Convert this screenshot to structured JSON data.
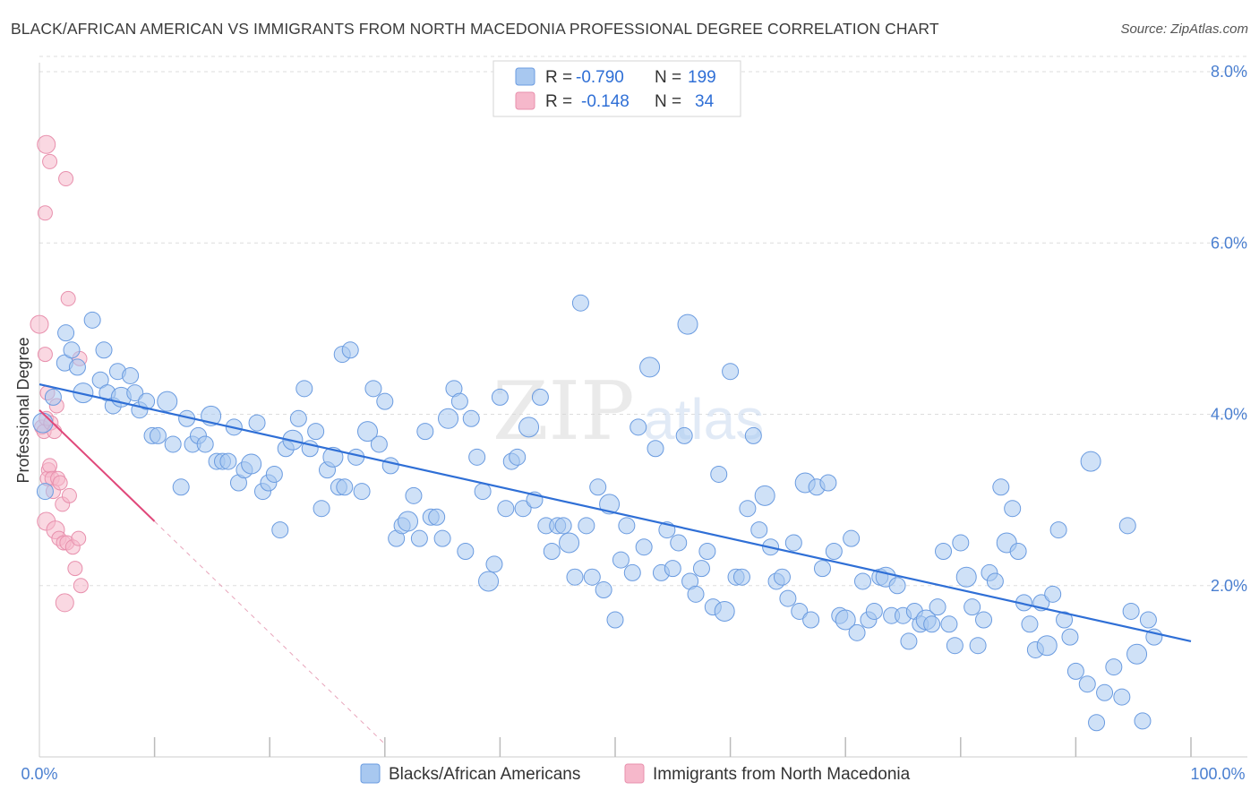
{
  "header": {
    "title": "BLACK/AFRICAN AMERICAN VS IMMIGRANTS FROM NORTH MACEDONIA PROFESSIONAL DEGREE CORRELATION CHART",
    "source": "Source: ZipAtlas.com"
  },
  "watermark": {
    "zip": "ZIP",
    "atlas": "atlas"
  },
  "legend_top": {
    "rows": [
      {
        "r_label": "R =",
        "r_value": "-0.790",
        "n_label": "N =",
        "n_value": "199",
        "color": "#a8c8f0"
      },
      {
        "r_label": "R =",
        "r_value": "-0.148",
        "n_label": "N =",
        "n_value": "34",
        "color": "#f6b8cb"
      }
    ]
  },
  "colors": {
    "blue_fill": "#a8c8f0",
    "blue_stroke": "#6a9be0",
    "blue_line": "#2f6fd6",
    "pink_fill": "#f6b8cb",
    "pink_stroke": "#e890ad",
    "pink_line": "#e0487a",
    "grid": "#dddddd",
    "tick_text": "#4a7fd0"
  },
  "chart_data": {
    "type": "scatter",
    "title": "BLACK/AFRICAN AMERICAN VS IMMIGRANTS FROM NORTH MACEDONIA PROFESSIONAL DEGREE CORRELATION CHART",
    "xlabel": "",
    "ylabel": "Professional Degree",
    "xlim": [
      0,
      100
    ],
    "ylim": [
      0,
      8.0
    ],
    "x_tick_labels": [
      "0.0%",
      "100.0%"
    ],
    "y_ticks": [
      2.0,
      4.0,
      6.0,
      8.0
    ],
    "y_tick_labels": [
      "2.0%",
      "4.0%",
      "6.0%",
      "8.0%"
    ],
    "grid": "horizontal dashed",
    "legend_placement": "bottom-center",
    "series": [
      {
        "name": "Blacks/African Americans",
        "trend": {
          "x": [
            0,
            100
          ],
          "y": [
            4.35,
            1.35
          ]
        },
        "points": [
          [
            0.3,
            3.9
          ],
          [
            0.5,
            3.1
          ],
          [
            1.2,
            4.2
          ],
          [
            2.2,
            4.6
          ],
          [
            2.3,
            4.95
          ],
          [
            2.8,
            4.75
          ],
          [
            3.3,
            4.55
          ],
          [
            3.8,
            4.25
          ],
          [
            4.6,
            5.1
          ],
          [
            5.3,
            4.4
          ],
          [
            5.6,
            4.75
          ],
          [
            5.9,
            4.25
          ],
          [
            6.4,
            4.1
          ],
          [
            6.8,
            4.5
          ],
          [
            7.1,
            4.2
          ],
          [
            7.9,
            4.45
          ],
          [
            8.3,
            4.25
          ],
          [
            8.7,
            4.05
          ],
          [
            9.3,
            4.15
          ],
          [
            9.8,
            3.75
          ],
          [
            10.3,
            3.75
          ],
          [
            11.1,
            4.15
          ],
          [
            11.6,
            3.65
          ],
          [
            12.3,
            3.15
          ],
          [
            12.8,
            3.95
          ],
          [
            13.3,
            3.65
          ],
          [
            13.8,
            3.75
          ],
          [
            14.4,
            3.65
          ],
          [
            14.9,
            3.98
          ],
          [
            15.4,
            3.45
          ],
          [
            15.9,
            3.45
          ],
          [
            16.4,
            3.45
          ],
          [
            16.9,
            3.85
          ],
          [
            17.3,
            3.2
          ],
          [
            17.8,
            3.35
          ],
          [
            18.4,
            3.42
          ],
          [
            18.9,
            3.9
          ],
          [
            19.4,
            3.1
          ],
          [
            19.9,
            3.2
          ],
          [
            20.4,
            3.3
          ],
          [
            20.9,
            2.65
          ],
          [
            21.4,
            3.6
          ],
          [
            22.0,
            3.7
          ],
          [
            22.5,
            3.95
          ],
          [
            23.0,
            4.3
          ],
          [
            23.5,
            3.6
          ],
          [
            24.0,
            3.8
          ],
          [
            24.5,
            2.9
          ],
          [
            25.0,
            3.35
          ],
          [
            25.5,
            3.5
          ],
          [
            26.0,
            3.15
          ],
          [
            26.3,
            4.7
          ],
          [
            26.5,
            3.15
          ],
          [
            27.0,
            4.75
          ],
          [
            27.5,
            3.5
          ],
          [
            28.0,
            3.1
          ],
          [
            28.5,
            3.8
          ],
          [
            29.0,
            4.3
          ],
          [
            29.5,
            3.65
          ],
          [
            30.0,
            4.15
          ],
          [
            30.5,
            3.4
          ],
          [
            31.0,
            2.55
          ],
          [
            31.5,
            2.7
          ],
          [
            32.0,
            2.75
          ],
          [
            32.5,
            3.05
          ],
          [
            33.0,
            2.55
          ],
          [
            33.5,
            3.8
          ],
          [
            34.0,
            2.8
          ],
          [
            34.5,
            2.8
          ],
          [
            35.0,
            2.55
          ],
          [
            35.5,
            3.95
          ],
          [
            36.0,
            4.3
          ],
          [
            36.5,
            4.15
          ],
          [
            37.0,
            2.4
          ],
          [
            37.5,
            3.95
          ],
          [
            38.0,
            3.5
          ],
          [
            38.5,
            3.1
          ],
          [
            39.0,
            2.05
          ],
          [
            39.5,
            2.25
          ],
          [
            40.0,
            4.2
          ],
          [
            40.5,
            2.9
          ],
          [
            41.0,
            3.45
          ],
          [
            41.5,
            3.5
          ],
          [
            42.0,
            2.9
          ],
          [
            42.5,
            3.85
          ],
          [
            43.0,
            3.0
          ],
          [
            43.5,
            4.2
          ],
          [
            44.0,
            2.7
          ],
          [
            44.5,
            2.4
          ],
          [
            45.0,
            2.7
          ],
          [
            45.5,
            2.7
          ],
          [
            46.0,
            2.5
          ],
          [
            46.5,
            2.1
          ],
          [
            47.0,
            5.3
          ],
          [
            47.5,
            2.7
          ],
          [
            48.0,
            2.1
          ],
          [
            48.5,
            3.15
          ],
          [
            49.0,
            1.95
          ],
          [
            49.5,
            2.95
          ],
          [
            50.0,
            1.6
          ],
          [
            50.5,
            2.3
          ],
          [
            51.0,
            2.7
          ],
          [
            51.5,
            2.15
          ],
          [
            52.0,
            3.85
          ],
          [
            52.5,
            2.45
          ],
          [
            53.0,
            4.55
          ],
          [
            53.5,
            3.6
          ],
          [
            54.0,
            2.15
          ],
          [
            54.5,
            2.65
          ],
          [
            55.0,
            2.2
          ],
          [
            55.5,
            2.5
          ],
          [
            56.0,
            3.75
          ],
          [
            56.3,
            5.05
          ],
          [
            56.5,
            2.05
          ],
          [
            57.0,
            1.9
          ],
          [
            57.5,
            2.2
          ],
          [
            58.0,
            2.4
          ],
          [
            58.5,
            1.75
          ],
          [
            59.0,
            3.3
          ],
          [
            59.5,
            1.7
          ],
          [
            60.0,
            4.5
          ],
          [
            60.5,
            2.1
          ],
          [
            61.0,
            2.1
          ],
          [
            61.5,
            2.9
          ],
          [
            62.0,
            3.75
          ],
          [
            62.5,
            2.65
          ],
          [
            63.0,
            3.05
          ],
          [
            63.5,
            2.45
          ],
          [
            64.0,
            2.05
          ],
          [
            64.5,
            2.1
          ],
          [
            65.0,
            1.85
          ],
          [
            65.5,
            2.5
          ],
          [
            66.0,
            1.7
          ],
          [
            66.5,
            3.2
          ],
          [
            67.0,
            1.6
          ],
          [
            67.5,
            3.15
          ],
          [
            68.0,
            2.2
          ],
          [
            68.5,
            3.2
          ],
          [
            69.0,
            2.4
          ],
          [
            69.5,
            1.65
          ],
          [
            70.0,
            1.6
          ],
          [
            70.5,
            2.55
          ],
          [
            71.0,
            1.45
          ],
          [
            71.5,
            2.05
          ],
          [
            72.0,
            1.6
          ],
          [
            72.5,
            1.7
          ],
          [
            73.0,
            2.1
          ],
          [
            73.5,
            2.1
          ],
          [
            74.0,
            1.65
          ],
          [
            74.5,
            2.0
          ],
          [
            75.0,
            1.65
          ],
          [
            75.5,
            1.35
          ],
          [
            76.0,
            1.7
          ],
          [
            76.5,
            1.55
          ],
          [
            77.0,
            1.6
          ],
          [
            77.5,
            1.55
          ],
          [
            78.0,
            1.75
          ],
          [
            78.5,
            2.4
          ],
          [
            79.0,
            1.55
          ],
          [
            79.5,
            1.3
          ],
          [
            80.0,
            2.5
          ],
          [
            80.5,
            2.1
          ],
          [
            81.0,
            1.75
          ],
          [
            81.5,
            1.3
          ],
          [
            82.0,
            1.6
          ],
          [
            82.5,
            2.15
          ],
          [
            83.0,
            2.05
          ],
          [
            83.5,
            3.15
          ],
          [
            84.0,
            2.5
          ],
          [
            84.5,
            2.9
          ],
          [
            85.0,
            2.4
          ],
          [
            85.5,
            1.8
          ],
          [
            86.0,
            1.55
          ],
          [
            86.5,
            1.25
          ],
          [
            87.0,
            1.8
          ],
          [
            87.5,
            1.3
          ],
          [
            88.0,
            1.9
          ],
          [
            88.5,
            2.65
          ],
          [
            89.0,
            1.6
          ],
          [
            89.5,
            1.4
          ],
          [
            90.0,
            1.0
          ],
          [
            91.0,
            0.85
          ],
          [
            91.3,
            3.45
          ],
          [
            91.8,
            0.4
          ],
          [
            92.5,
            0.75
          ],
          [
            93.3,
            1.05
          ],
          [
            94.0,
            0.7
          ],
          [
            94.5,
            2.7
          ],
          [
            94.8,
            1.7
          ],
          [
            95.3,
            1.2
          ],
          [
            95.8,
            0.42
          ],
          [
            96.3,
            1.6
          ],
          [
            96.8,
            1.4
          ]
        ]
      },
      {
        "name": "Immigrants from North Macedonia",
        "trend": {
          "x": [
            0,
            10
          ],
          "y": [
            4.05,
            2.75
          ]
        },
        "trend_dashed_to": {
          "x": [
            10,
            30
          ],
          "y": [
            2.75,
            0.15
          ]
        },
        "points": [
          [
            0.0,
            5.05
          ],
          [
            0.2,
            3.85
          ],
          [
            0.4,
            3.8
          ],
          [
            0.5,
            4.7
          ],
          [
            0.6,
            3.95
          ],
          [
            0.7,
            4.25
          ],
          [
            0.8,
            3.35
          ],
          [
            0.6,
            2.75
          ],
          [
            0.7,
            3.25
          ],
          [
            0.9,
            3.4
          ],
          [
            1.0,
            3.9
          ],
          [
            1.1,
            3.25
          ],
          [
            1.2,
            3.1
          ],
          [
            1.3,
            3.8
          ],
          [
            1.4,
            2.65
          ],
          [
            1.5,
            4.1
          ],
          [
            1.6,
            3.25
          ],
          [
            1.7,
            2.55
          ],
          [
            1.8,
            3.2
          ],
          [
            2.0,
            2.95
          ],
          [
            2.1,
            2.5
          ],
          [
            2.2,
            1.8
          ],
          [
            2.4,
            2.5
          ],
          [
            2.6,
            3.05
          ],
          [
            2.9,
            2.45
          ],
          [
            3.1,
            2.2
          ],
          [
            3.4,
            2.55
          ],
          [
            3.6,
            2.0
          ],
          [
            0.6,
            7.15
          ],
          [
            0.9,
            6.95
          ],
          [
            2.3,
            6.75
          ],
          [
            0.5,
            6.35
          ],
          [
            2.5,
            5.35
          ],
          [
            3.5,
            4.65
          ]
        ]
      }
    ]
  },
  "legend_bottom": {
    "items": [
      {
        "label": "Blacks/African Americans",
        "color": "#a8c8f0"
      },
      {
        "label": "Immigrants from North Macedonia",
        "color": "#f6b8cb"
      }
    ]
  }
}
